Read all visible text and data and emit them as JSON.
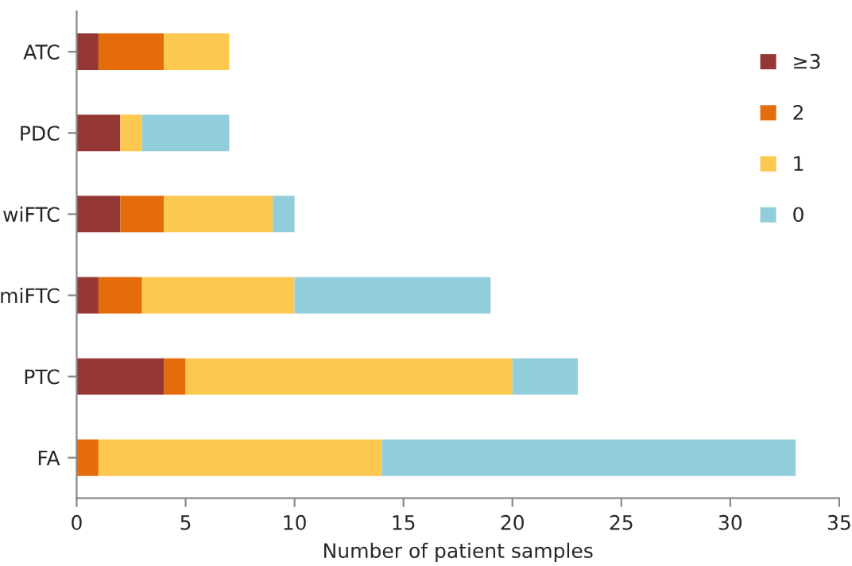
{
  "chart_data": {
    "type": "bar",
    "orientation": "horizontal",
    "stacked": true,
    "xlabel": "Number of patient samples",
    "categories": [
      "ATC",
      "PDC",
      "wiFTC",
      "miFTC",
      "PTC",
      "FA"
    ],
    "series": [
      {
        "name": "≥3",
        "color": "#953735",
        "values": [
          1,
          2,
          2,
          1,
          4,
          0
        ]
      },
      {
        "name": "2",
        "color": "#e46c0a",
        "values": [
          3,
          0,
          2,
          2,
          1,
          1
        ]
      },
      {
        "name": "1",
        "color": "#fcc850",
        "values": [
          3,
          1,
          5,
          7,
          15,
          13
        ]
      },
      {
        "name": "0",
        "color": "#92cddc",
        "values": [
          0,
          4,
          1,
          9,
          3,
          19
        ]
      }
    ],
    "xlim": [
      0,
      35
    ],
    "xticks": [
      0,
      5,
      10,
      15,
      20,
      25,
      30,
      35
    ],
    "grid": false,
    "legend": "top right"
  }
}
